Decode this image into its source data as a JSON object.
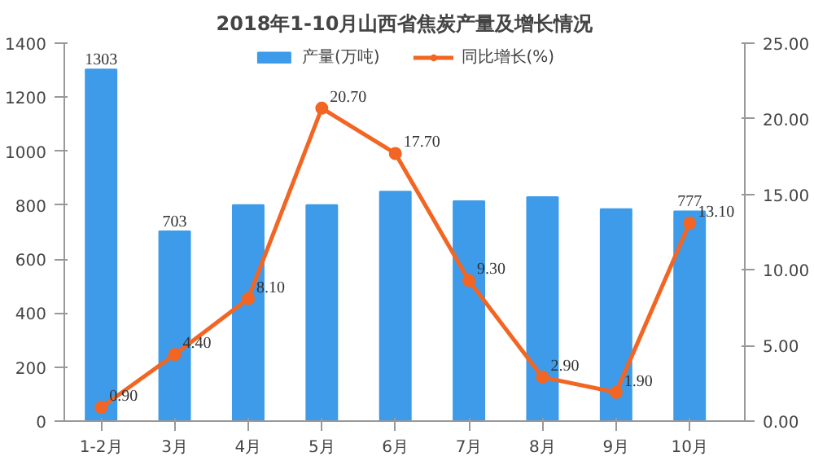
{
  "chart_data": {
    "type": "bar",
    "title": "2018年1-10月山西省焦炭产量及增长情况",
    "categories": [
      "1-2月",
      "3月",
      "4月",
      "5月",
      "6月",
      "7月",
      "8月",
      "9月",
      "10月"
    ],
    "series": [
      {
        "name": "产量(万吨)",
        "color": "#3d9be9",
        "values": [
          1303,
          703,
          800,
          800,
          850,
          815,
          830,
          785,
          777
        ],
        "value_labels": [
          "1303",
          "703",
          null,
          null,
          null,
          null,
          null,
          null,
          "777"
        ]
      },
      {
        "name": "同比增长(%)",
        "type": "line",
        "axis": "y2",
        "color": "#f26522",
        "values": [
          0.9,
          4.4,
          8.1,
          20.7,
          17.7,
          9.3,
          2.9,
          1.9,
          13.1
        ],
        "value_labels": [
          "0.90",
          "4.40",
          "8.10",
          "20.70",
          "17.70",
          "9.30",
          "2.90",
          "1.90",
          "13.10"
        ]
      }
    ],
    "ylim": [
      0,
      1400
    ],
    "yticks": [
      0,
      200,
      400,
      600,
      800,
      1000,
      1200,
      1400
    ],
    "y2lim": [
      0,
      25
    ],
    "y2ticks": [
      {
        "value": 0,
        "label": "0.00"
      },
      {
        "value": 5,
        "label": "5.00"
      },
      {
        "value": 10,
        "label": "10.00"
      },
      {
        "value": 15,
        "label": "15.00"
      },
      {
        "value": 20,
        "label": "20.00"
      },
      {
        "value": 25,
        "label": "25.00"
      }
    ],
    "legend": "top",
    "marker": "circle",
    "grid": false
  }
}
